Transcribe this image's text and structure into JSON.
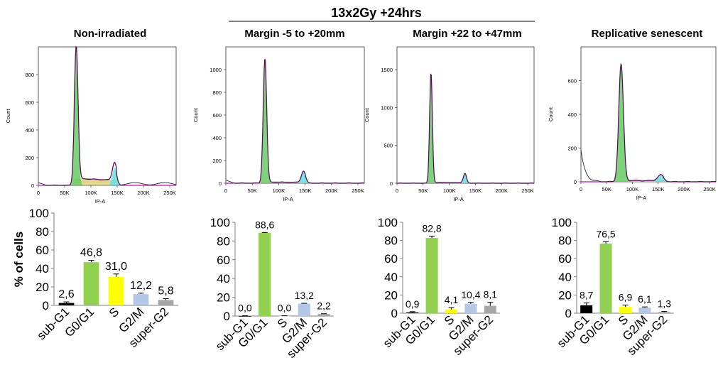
{
  "header": {
    "label": "13x2Gy +24hrs"
  },
  "colors": {
    "sub-G1": "#000000",
    "G0/G1": "#92d050",
    "S": "#ffff00",
    "G2/M": "#b4c7e7",
    "super-G2": "#a6a6a6",
    "histogram_fit": "#cc33cc",
    "histogram_raw": "#222222",
    "g1_fill": "#66cc66",
    "g2_fill": "#66dddd",
    "s_fill": "#dccc77"
  },
  "chart_data": [
    {
      "type": "area",
      "panel": "Non-irradiated",
      "title": "Non-irradiated",
      "xlabel": "IP-A",
      "ylabel": "Count",
      "xlim": [
        0,
        262144
      ],
      "ylim": [
        0,
        1000
      ],
      "xticks": [
        "0",
        "50K",
        "100K",
        "150K",
        "200K",
        "250K"
      ],
      "yticks": [
        "0",
        "200",
        "400",
        "600",
        "800"
      ],
      "peaks": [
        {
          "name": "G0/G1",
          "x": 72000,
          "height": 960,
          "sigma": 3500
        },
        {
          "name": "G2/M",
          "x": 145000,
          "height": 130,
          "sigma": 4000
        }
      ],
      "s_phase_level": 50,
      "debris_level": 20
    },
    {
      "type": "area",
      "panel": "Margin -5 to +20mm",
      "title": "Margin -5 to +20mm",
      "xlabel": "IP-A",
      "ylabel": "Count",
      "xlim": [
        0,
        262144
      ],
      "ylim": [
        0,
        1200
      ],
      "xticks": [
        "0",
        "50K",
        "100K",
        "150K",
        "200K",
        "250K"
      ],
      "yticks": [
        "0",
        "200",
        "400",
        "600",
        "800",
        "1000"
      ],
      "peaks": [
        {
          "name": "G0/G1",
          "x": 74000,
          "height": 1090,
          "sigma": 3300
        },
        {
          "name": "G2/M",
          "x": 147000,
          "height": 100,
          "sigma": 4000
        }
      ],
      "s_phase_level": 10,
      "debris_level": 30
    },
    {
      "type": "area",
      "panel": "Margin +22 to +47mm",
      "title": "Margin +22 to +47mm",
      "xlabel": "IP-A",
      "ylabel": "Count",
      "xlim": [
        0,
        262144
      ],
      "ylim": [
        0,
        1800
      ],
      "xticks": [
        "0",
        "50K",
        "100K",
        "150K",
        "200K",
        "250K"
      ],
      "yticks": [
        "0",
        "500",
        "1000",
        "1500"
      ],
      "peaks": [
        {
          "name": "G0/G1",
          "x": 65000,
          "height": 1450,
          "sigma": 2600
        },
        {
          "name": "G2/M",
          "x": 130000,
          "height": 120,
          "sigma": 3000
        }
      ],
      "s_phase_level": 10,
      "debris_level": 0
    },
    {
      "type": "area",
      "panel": "Replicative senescent",
      "title": "Replicative senescent",
      "xlabel": "IP-A",
      "ylabel": "Count",
      "xlim": [
        0,
        262144
      ],
      "ylim": [
        0,
        800
      ],
      "xticks": [
        "0",
        "50K",
        "100K",
        "150K",
        "200K",
        "250K"
      ],
      "yticks": [
        "0",
        "200",
        "400",
        "600"
      ],
      "peaks": [
        {
          "name": "G0/G1",
          "x": 78000,
          "height": 690,
          "sigma": 4500
        },
        {
          "name": "G2/M",
          "x": 155000,
          "height": 35,
          "sigma": 6000
        }
      ],
      "s_phase_level": 8,
      "debris_level": 190
    },
    {
      "type": "bar",
      "panel": "Non-irradiated",
      "ylabel": "% of cells",
      "ylim": [
        0,
        100
      ],
      "yticks": [
        "0",
        "20",
        "40",
        "60",
        "80",
        "100"
      ],
      "categories": [
        "sub-G1",
        "G0/G1",
        "S",
        "G2/M",
        "super-G2"
      ],
      "values": [
        2.6,
        46.8,
        31.0,
        12.2,
        5.8
      ],
      "errors": [
        1.2,
        2.0,
        3.0,
        1.0,
        1.5
      ],
      "labels": [
        "2,6",
        "46,8",
        "31,0",
        "12,2",
        "5,8"
      ]
    },
    {
      "type": "bar",
      "panel": "Margin -5 to +20mm",
      "ylabel": "",
      "ylim": [
        0,
        100
      ],
      "yticks": [
        "0",
        "20",
        "40",
        "60",
        "80",
        "100"
      ],
      "categories": [
        "sub-G1",
        "G0/G1",
        "S",
        "G2/M",
        "super-G2"
      ],
      "values": [
        0.0,
        88.6,
        0.0,
        13.2,
        2.2
      ],
      "errors": [
        0.3,
        0.5,
        0.3,
        0.4,
        0.3
      ],
      "labels": [
        "0,0",
        "88,6",
        "0,0",
        "13,2",
        "2,2"
      ]
    },
    {
      "type": "bar",
      "panel": "Margin +22 to +47mm",
      "ylabel": "",
      "ylim": [
        0,
        100
      ],
      "yticks": [
        "0",
        "20",
        "40",
        "60",
        "80",
        "100"
      ],
      "categories": [
        "sub-G1",
        "G0/G1",
        "S",
        "G2/M",
        "super-G2"
      ],
      "values": [
        0.9,
        82.8,
        4.1,
        10.4,
        8.1
      ],
      "errors": [
        0.8,
        2.0,
        2.0,
        1.5,
        4.0
      ],
      "labels": [
        "0,9",
        "82,8",
        "4,1",
        "10,4",
        "8,1"
      ]
    },
    {
      "type": "bar",
      "panel": "Replicative senescent",
      "ylabel": "",
      "ylim": [
        0,
        100
      ],
      "yticks": [
        "0",
        "20",
        "40",
        "60",
        "80",
        "100"
      ],
      "categories": [
        "sub-G1",
        "G0/G1",
        "S",
        "G2/M",
        "super-G2"
      ],
      "values": [
        8.7,
        76.5,
        6.9,
        6.1,
        1.3
      ],
      "errors": [
        2.5,
        2.0,
        2.0,
        0.8,
        0.6
      ],
      "labels": [
        "8,7",
        "76,5",
        "6,9",
        "6,1",
        "1,3"
      ]
    }
  ]
}
